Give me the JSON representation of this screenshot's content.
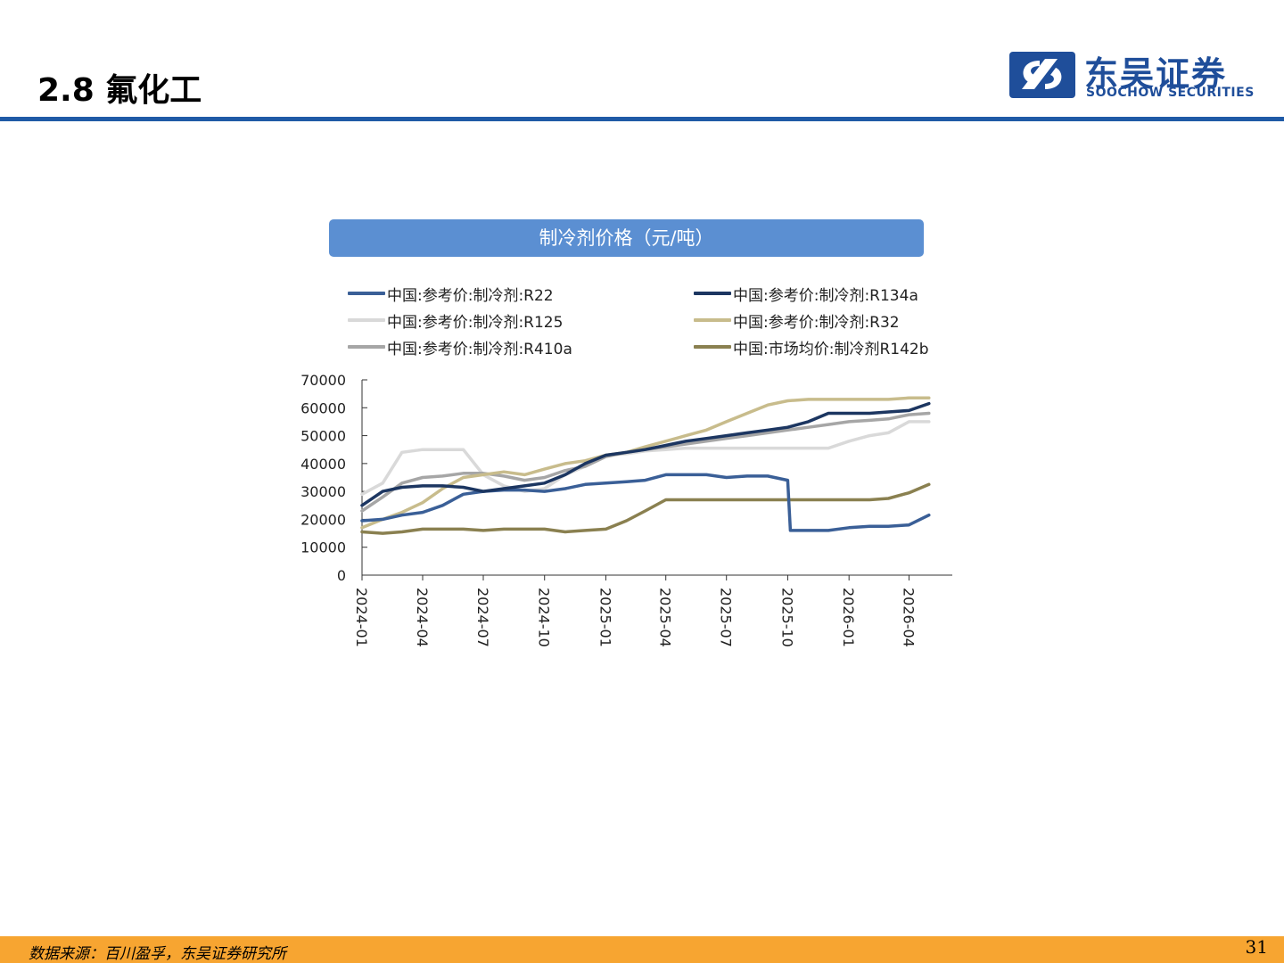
{
  "slide": {
    "title": "2.8 氟化工",
    "page_number": "31",
    "source": "数据来源：百川盈孚，东吴证券研究所"
  },
  "brand": {
    "name_cn": "东吴证券",
    "name_en": "SOOCHOW SECURITIES",
    "color": "#1f4e9a",
    "accent": "#f7a531"
  },
  "chart": {
    "banner_title": "制冷剂价格（元/吨）"
  },
  "chart_data": {
    "type": "line",
    "title": "制冷剂价格（元/吨）",
    "xlabel": "",
    "ylabel": "",
    "ylim": [
      0,
      70000
    ],
    "yticks": [
      "0",
      "10000",
      "20000",
      "30000",
      "40000",
      "50000",
      "60000",
      "70000"
    ],
    "xticks": [
      "2024-01",
      "2024-04",
      "2024-07",
      "2024-10",
      "2025-01",
      "2025-04",
      "2025-07",
      "2025-10",
      "2026-01",
      "2026-04"
    ],
    "grid": false,
    "legend_position": "top",
    "series": [
      {
        "name": "中国:参考价:制冷剂:R22",
        "color": "#3a5f97",
        "points": [
          [
            "2024-01",
            19500
          ],
          [
            "2024-02",
            20000
          ],
          [
            "2024-03",
            21500
          ],
          [
            "2024-04",
            22500
          ],
          [
            "2024-05",
            25000
          ],
          [
            "2024-06",
            29000
          ],
          [
            "2024-07",
            30000
          ],
          [
            "2024-08",
            30500
          ],
          [
            "2024-09",
            30500
          ],
          [
            "2024-10",
            30000
          ],
          [
            "2024-11",
            31000
          ],
          [
            "2024-12",
            32500
          ],
          [
            "2025-01",
            33000
          ],
          [
            "2025-02",
            33500
          ],
          [
            "2025-03",
            34000
          ],
          [
            "2025-04",
            36000
          ],
          [
            "2025-05",
            36000
          ],
          [
            "2025-06",
            36000
          ],
          [
            "2025-07",
            35000
          ],
          [
            "2025-08",
            35500
          ],
          [
            "2025-09",
            35500
          ],
          [
            "2025-10",
            34000
          ],
          [
            "2025-10-05",
            16000
          ],
          [
            "2025-11",
            16000
          ],
          [
            "2025-12",
            16000
          ],
          [
            "2026-01",
            17000
          ],
          [
            "2026-02",
            17500
          ],
          [
            "2026-03",
            17500
          ],
          [
            "2026-04",
            18000
          ],
          [
            "2026-05",
            21500
          ]
        ]
      },
      {
        "name": "中国:参考价:制冷剂:R134a",
        "color": "#1c3661",
        "points": [
          [
            "2024-01",
            25000
          ],
          [
            "2024-02",
            30000
          ],
          [
            "2024-03",
            31500
          ],
          [
            "2024-04",
            32000
          ],
          [
            "2024-05",
            32000
          ],
          [
            "2024-06",
            31500
          ],
          [
            "2024-07",
            30000
          ],
          [
            "2024-08",
            31000
          ],
          [
            "2024-09",
            32000
          ],
          [
            "2024-10",
            33000
          ],
          [
            "2024-11",
            36000
          ],
          [
            "2024-12",
            40000
          ],
          [
            "2025-01",
            43000
          ],
          [
            "2025-02",
            44000
          ],
          [
            "2025-03",
            45000
          ],
          [
            "2025-04",
            46500
          ],
          [
            "2025-05",
            48000
          ],
          [
            "2025-06",
            49000
          ],
          [
            "2025-07",
            50000
          ],
          [
            "2025-08",
            51000
          ],
          [
            "2025-09",
            52000
          ],
          [
            "2025-10",
            53000
          ],
          [
            "2025-11",
            55000
          ],
          [
            "2025-12",
            58000
          ],
          [
            "2026-01",
            58000
          ],
          [
            "2026-02",
            58000
          ],
          [
            "2026-03",
            58500
          ],
          [
            "2026-04",
            59000
          ],
          [
            "2026-05",
            61500
          ]
        ]
      },
      {
        "name": "中国:参考价:制冷剂:R125",
        "color": "#d9d9d9",
        "points": [
          [
            "2024-01",
            29000
          ],
          [
            "2024-02",
            33000
          ],
          [
            "2024-03",
            44000
          ],
          [
            "2024-04",
            45000
          ],
          [
            "2024-05",
            45000
          ],
          [
            "2024-06",
            45000
          ],
          [
            "2024-07",
            36000
          ],
          [
            "2024-08",
            32000
          ],
          [
            "2024-09",
            30000
          ],
          [
            "2024-10",
            31000
          ],
          [
            "2024-11",
            36000
          ],
          [
            "2024-12",
            39000
          ],
          [
            "2025-01",
            43000
          ],
          [
            "2025-02",
            43500
          ],
          [
            "2025-03",
            44500
          ],
          [
            "2025-04",
            45000
          ],
          [
            "2025-05",
            45500
          ],
          [
            "2025-06",
            45500
          ],
          [
            "2025-07",
            45500
          ],
          [
            "2025-08",
            45500
          ],
          [
            "2025-09",
            45500
          ],
          [
            "2025-10",
            45500
          ],
          [
            "2025-11",
            45500
          ],
          [
            "2025-12",
            45500
          ],
          [
            "2026-01",
            48000
          ],
          [
            "2026-02",
            50000
          ],
          [
            "2026-03",
            51000
          ],
          [
            "2026-04",
            55000
          ],
          [
            "2026-05",
            55000
          ]
        ]
      },
      {
        "name": "中国:参考价:制冷剂:R32",
        "color": "#c8bc8c",
        "points": [
          [
            "2024-01",
            17000
          ],
          [
            "2024-02",
            20000
          ],
          [
            "2024-03",
            22500
          ],
          [
            "2024-04",
            26000
          ],
          [
            "2024-05",
            31000
          ],
          [
            "2024-06",
            35000
          ],
          [
            "2024-07",
            36000
          ],
          [
            "2024-08",
            37000
          ],
          [
            "2024-09",
            36000
          ],
          [
            "2024-10",
            38000
          ],
          [
            "2024-11",
            40000
          ],
          [
            "2024-12",
            41000
          ],
          [
            "2025-01",
            43000
          ],
          [
            "2025-02",
            44000
          ],
          [
            "2025-03",
            46000
          ],
          [
            "2025-04",
            48000
          ],
          [
            "2025-05",
            50000
          ],
          [
            "2025-06",
            52000
          ],
          [
            "2025-07",
            55000
          ],
          [
            "2025-08",
            58000
          ],
          [
            "2025-09",
            61000
          ],
          [
            "2025-10",
            62500
          ],
          [
            "2025-11",
            63000
          ],
          [
            "2025-12",
            63000
          ],
          [
            "2026-01",
            63000
          ],
          [
            "2026-02",
            63000
          ],
          [
            "2026-03",
            63000
          ],
          [
            "2026-04",
            63500
          ],
          [
            "2026-05",
            63500
          ]
        ]
      },
      {
        "name": "中国:参考价:制冷剂:R410a",
        "color": "#a6a6a6",
        "points": [
          [
            "2024-01",
            23000
          ],
          [
            "2024-02",
            28000
          ],
          [
            "2024-03",
            33000
          ],
          [
            "2024-04",
            35000
          ],
          [
            "2024-05",
            35500
          ],
          [
            "2024-06",
            36500
          ],
          [
            "2024-07",
            36500
          ],
          [
            "2024-08",
            35500
          ],
          [
            "2024-09",
            34000
          ],
          [
            "2024-10",
            35000
          ],
          [
            "2024-11",
            37500
          ],
          [
            "2024-12",
            39000
          ],
          [
            "2025-01",
            42500
          ],
          [
            "2025-02",
            44000
          ],
          [
            "2025-03",
            45000
          ],
          [
            "2025-04",
            46000
          ],
          [
            "2025-05",
            47000
          ],
          [
            "2025-06",
            48000
          ],
          [
            "2025-07",
            49000
          ],
          [
            "2025-08",
            50000
          ],
          [
            "2025-09",
            51000
          ],
          [
            "2025-10",
            52000
          ],
          [
            "2025-11",
            53000
          ],
          [
            "2025-12",
            54000
          ],
          [
            "2026-01",
            55000
          ],
          [
            "2026-02",
            55500
          ],
          [
            "2026-03",
            56000
          ],
          [
            "2026-04",
            57500
          ],
          [
            "2026-05",
            58000
          ]
        ]
      },
      {
        "name": "中国:市场均价:制冷剂R142b",
        "color": "#8a8050",
        "points": [
          [
            "2024-01",
            15500
          ],
          [
            "2024-02",
            15000
          ],
          [
            "2024-03",
            15500
          ],
          [
            "2024-04",
            16500
          ],
          [
            "2024-05",
            16500
          ],
          [
            "2024-06",
            16500
          ],
          [
            "2024-07",
            16000
          ],
          [
            "2024-08",
            16500
          ],
          [
            "2024-09",
            16500
          ],
          [
            "2024-10",
            16500
          ],
          [
            "2024-11",
            15500
          ],
          [
            "2024-12",
            16000
          ],
          [
            "2025-01",
            16500
          ],
          [
            "2025-02",
            19500
          ],
          [
            "2025-03",
            23000
          ],
          [
            "2025-04",
            27000
          ],
          [
            "2025-05",
            27000
          ],
          [
            "2025-06",
            27000
          ],
          [
            "2025-07",
            27000
          ],
          [
            "2025-08",
            27000
          ],
          [
            "2025-09",
            27000
          ],
          [
            "2025-10",
            27000
          ],
          [
            "2025-11",
            27000
          ],
          [
            "2025-12",
            27000
          ],
          [
            "2026-01",
            27000
          ],
          [
            "2026-02",
            27000
          ],
          [
            "2026-03",
            27500
          ],
          [
            "2026-04",
            29500
          ],
          [
            "2026-05",
            32500
          ]
        ]
      }
    ]
  }
}
